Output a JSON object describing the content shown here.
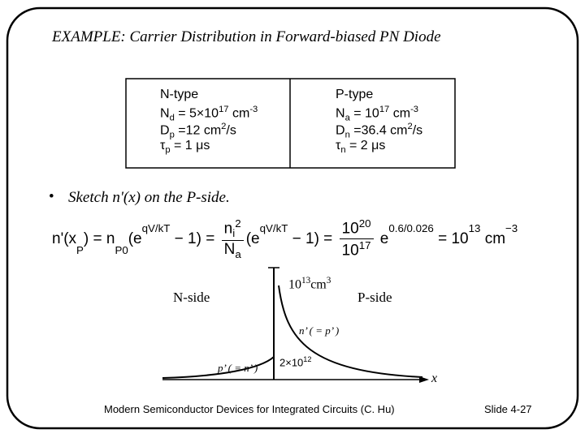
{
  "title": "EXAMPLE:  Carrier Distribution in Forward-biased PN Diode",
  "table": {
    "left": [
      [
        {
          "text": "N-type"
        }
      ],
      [
        {
          "text": "N"
        },
        {
          "text": "d",
          "pos": "sub"
        },
        {
          "text": " = 5×10"
        },
        {
          "text": "17",
          "pos": "sup"
        },
        {
          "text": " cm"
        },
        {
          "text": "-3",
          "pos": "sup"
        }
      ],
      [
        {
          "text": "D"
        },
        {
          "text": "p",
          "pos": "sub"
        },
        {
          "text": " =12 cm"
        },
        {
          "text": "2",
          "pos": "sup"
        },
        {
          "text": "/s"
        }
      ],
      [
        {
          "text": "τ"
        },
        {
          "text": "p",
          "pos": "sub"
        },
        {
          "text": " = 1 μs"
        }
      ]
    ],
    "right": [
      [
        {
          "text": "P-type"
        }
      ],
      [
        {
          "text": "N"
        },
        {
          "text": "a",
          "pos": "sub"
        },
        {
          "text": " = 10"
        },
        {
          "text": "17",
          "pos": "sup"
        },
        {
          "text": " cm"
        },
        {
          "text": "-3",
          "pos": "sup"
        }
      ],
      [
        {
          "text": "D"
        },
        {
          "text": "n",
          "pos": "sub"
        },
        {
          "text": " =36.4 cm"
        },
        {
          "text": "2",
          "pos": "sup"
        },
        {
          "text": "/s"
        }
      ],
      [
        {
          "text": "τ"
        },
        {
          "text": "n",
          "pos": "sub"
        },
        {
          "text": " = 2 μs"
        }
      ]
    ]
  },
  "bullet": "Sketch n'(x) on the P-side.",
  "equation": [
    {
      "text": "n'(x"
    },
    {
      "text": "P",
      "pos": "sub"
    },
    {
      "text": ") = n"
    },
    {
      "text": "P0",
      "pos": "sub"
    },
    {
      "text": "(e"
    },
    {
      "text": "qV/kT",
      "pos": "sup"
    },
    {
      "text": " − 1) = "
    },
    {
      "num": [
        {
          "text": "n"
        },
        {
          "text": "i",
          "pos": "sub"
        },
        {
          "text": "2",
          "pos": "sup"
        }
      ],
      "den": [
        {
          "text": "N"
        },
        {
          "text": "a",
          "pos": "sub"
        }
      ]
    },
    {
      "text": "(e"
    },
    {
      "text": "qV/kT",
      "pos": "sup"
    },
    {
      "text": " − 1) = "
    },
    {
      "num": [
        {
          "text": "10"
        },
        {
          "text": "20",
          "pos": "sup"
        }
      ],
      "den": [
        {
          "text": "10"
        },
        {
          "text": "17",
          "pos": "sup"
        }
      ]
    },
    {
      "text": " e"
    },
    {
      "text": "0.6/0.026",
      "pos": "sup"
    },
    {
      "text": " = 10"
    },
    {
      "text": "13",
      "pos": "sup"
    },
    {
      "text": " cm"
    },
    {
      "text": "−3",
      "pos": "sup"
    }
  ],
  "diagram": {
    "n_side": "N-side",
    "p_side": "P-side",
    "peak": [
      {
        "text": "10"
      },
      {
        "text": "13",
        "pos": "sup"
      },
      {
        "text": "cm"
      },
      {
        "text": "3",
        "pos": "sup"
      }
    ],
    "n_label": "n’ ( = p’ )",
    "p_label": "p’ ( = n’ )",
    "p_value": [
      {
        "text": "2×10"
      },
      {
        "text": "12",
        "pos": "sup"
      }
    ],
    "x_label": "x"
  },
  "footer": {
    "source": "Modern Semiconductor Devices for Integrated Circuits (C. Hu)",
    "slide": "Slide 4-27"
  }
}
